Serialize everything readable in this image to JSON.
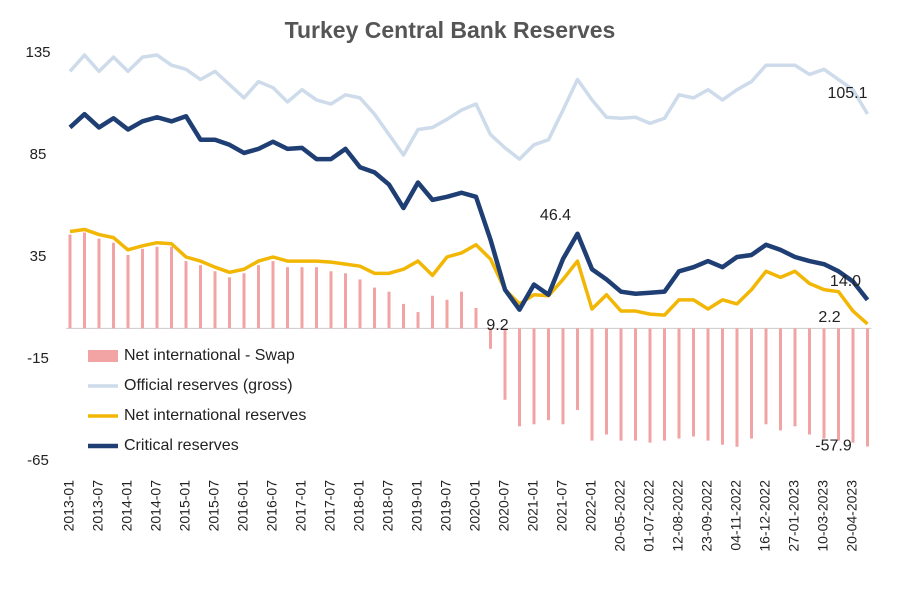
{
  "chart_data": {
    "type": "bar-line",
    "title": "Turkey Central Bank Reserves",
    "categories": [
      "2013-01",
      null,
      "2013-07",
      null,
      "2014-01",
      null,
      "2014-07",
      null,
      "2015-01",
      null,
      "2015-07",
      null,
      "2016-01",
      null,
      "2016-07",
      null,
      "2017-01",
      null,
      "2017-07",
      null,
      "2018-01",
      null,
      "2018-07",
      null,
      "2019-01",
      null,
      "2019-07",
      null,
      "2020-01",
      null,
      "2020-07",
      null,
      "2021-01",
      null,
      "2021-07",
      null,
      "2022-01",
      null,
      "20-05-2022",
      null,
      "01-07-2022",
      null,
      "12-08-2022",
      null,
      "23-09-2022",
      null,
      "04-11-2022",
      null,
      "16-12-2022",
      null,
      "27-01-2023",
      null,
      "10-03-2023",
      null,
      "20-04-2023",
      null
    ],
    "ylim": [
      -65,
      135
    ],
    "yticks": [
      -65,
      -15,
      35,
      85,
      135
    ],
    "grid": false,
    "legend": "left",
    "series": [
      {
        "name": "Net international - Swap",
        "type": "bar",
        "color": "#f2a3a3",
        "values": [
          46,
          47,
          44,
          42,
          36,
          39,
          40,
          40,
          33,
          31,
          28,
          25,
          27,
          31,
          33,
          30,
          30,
          30,
          28,
          27,
          24,
          20,
          18,
          12,
          8,
          16,
          14,
          18,
          10,
          -10,
          -35,
          -48,
          -47,
          -45,
          -47,
          -40,
          -55,
          -52,
          -55,
          -55,
          -56,
          -55,
          -54,
          -53,
          -55,
          -57,
          -58,
          -54,
          -47,
          -50,
          -48,
          -52,
          -54,
          -55,
          -56,
          -57.9
        ],
        "value_labels": [
          null,
          null,
          null,
          null,
          null,
          null,
          null,
          null,
          null,
          null,
          null,
          null,
          null,
          null,
          null,
          null,
          null,
          null,
          null,
          null,
          null,
          null,
          null,
          null,
          null,
          null,
          null,
          null,
          null,
          null,
          null,
          null,
          null,
          null,
          null,
          null,
          null,
          null,
          null,
          null,
          null,
          null,
          null,
          null,
          null,
          null,
          null,
          null,
          null,
          null,
          null,
          null,
          null,
          null,
          null,
          "-57.9"
        ]
      },
      {
        "name": "Official reserves (gross)",
        "type": "line",
        "color": "#cddbeb",
        "values": [
          126,
          134,
          126,
          133,
          126,
          133,
          134,
          129,
          127,
          122,
          126,
          119.5,
          113,
          121,
          118,
          111,
          117,
          112,
          110,
          114.5,
          113,
          105,
          95,
          85,
          97.5,
          98.5,
          102.5,
          107,
          110,
          95,
          88.5,
          83,
          90,
          92.5,
          107,
          122,
          112,
          103.5,
          103,
          103.5,
          100.5,
          103,
          114.5,
          113,
          117,
          112,
          117,
          121,
          129,
          129,
          129,
          124.5,
          127,
          122,
          117,
          105.1
        ],
        "value_labels": [
          null,
          null,
          null,
          null,
          null,
          null,
          null,
          null,
          null,
          null,
          null,
          null,
          null,
          null,
          null,
          null,
          null,
          null,
          null,
          null,
          null,
          null,
          null,
          null,
          null,
          null,
          null,
          null,
          null,
          null,
          null,
          null,
          null,
          null,
          null,
          null,
          null,
          null,
          null,
          null,
          null,
          null,
          null,
          null,
          null,
          null,
          null,
          null,
          null,
          null,
          null,
          null,
          null,
          null,
          null,
          "105.1"
        ]
      },
      {
        "name": "Net international reserves",
        "type": "line",
        "color": "#f2b705",
        "values": [
          47.5,
          48.5,
          46,
          44.5,
          38.5,
          40.5,
          42,
          41.5,
          35,
          33,
          30,
          27.5,
          29,
          33,
          35,
          33,
          33,
          33,
          32.5,
          31.5,
          30.5,
          27,
          27,
          29,
          33,
          26,
          35,
          37,
          41,
          34,
          19,
          12,
          16.5,
          16,
          24,
          33,
          9.5,
          16.5,
          8.5,
          8.5,
          7,
          6.5,
          14,
          14,
          9.5,
          14,
          12,
          19,
          28,
          25,
          28,
          22,
          19,
          18,
          8.5,
          2.2
        ],
        "value_labels": [
          null,
          null,
          null,
          null,
          null,
          null,
          null,
          null,
          null,
          null,
          null,
          null,
          null,
          null,
          null,
          null,
          null,
          null,
          null,
          null,
          null,
          null,
          null,
          null,
          null,
          null,
          null,
          null,
          null,
          null,
          null,
          null,
          null,
          null,
          null,
          null,
          null,
          null,
          null,
          null,
          null,
          null,
          null,
          null,
          null,
          null,
          null,
          null,
          null,
          null,
          null,
          null,
          null,
          null,
          null,
          "2.2"
        ]
      },
      {
        "name": "Critical reserves",
        "type": "line",
        "color": "#1f3f74",
        "values": [
          98.5,
          105,
          98.5,
          103,
          97.5,
          101.5,
          103.5,
          101.5,
          104,
          92.5,
          92.5,
          90,
          86,
          88,
          91.5,
          88,
          88.5,
          83,
          83,
          88,
          79,
          76.5,
          70.5,
          59,
          71.5,
          63,
          64.5,
          66.5,
          64.5,
          43.5,
          19,
          9.2,
          21.5,
          16.5,
          34,
          46.4,
          29,
          24,
          18,
          17,
          17.5,
          18,
          28,
          30,
          33,
          30,
          35,
          36,
          41,
          38.5,
          35,
          33,
          31.5,
          28,
          23,
          14
        ],
        "value_labels": [
          null,
          null,
          null,
          null,
          null,
          null,
          null,
          null,
          null,
          null,
          null,
          null,
          null,
          null,
          null,
          null,
          null,
          null,
          null,
          null,
          null,
          null,
          null,
          null,
          null,
          null,
          null,
          null,
          null,
          null,
          null,
          "9.2",
          null,
          null,
          null,
          "46.4",
          null,
          null,
          null,
          null,
          null,
          null,
          null,
          null,
          null,
          null,
          null,
          null,
          null,
          null,
          null,
          null,
          null,
          null,
          null,
          "14.0"
        ]
      }
    ]
  }
}
